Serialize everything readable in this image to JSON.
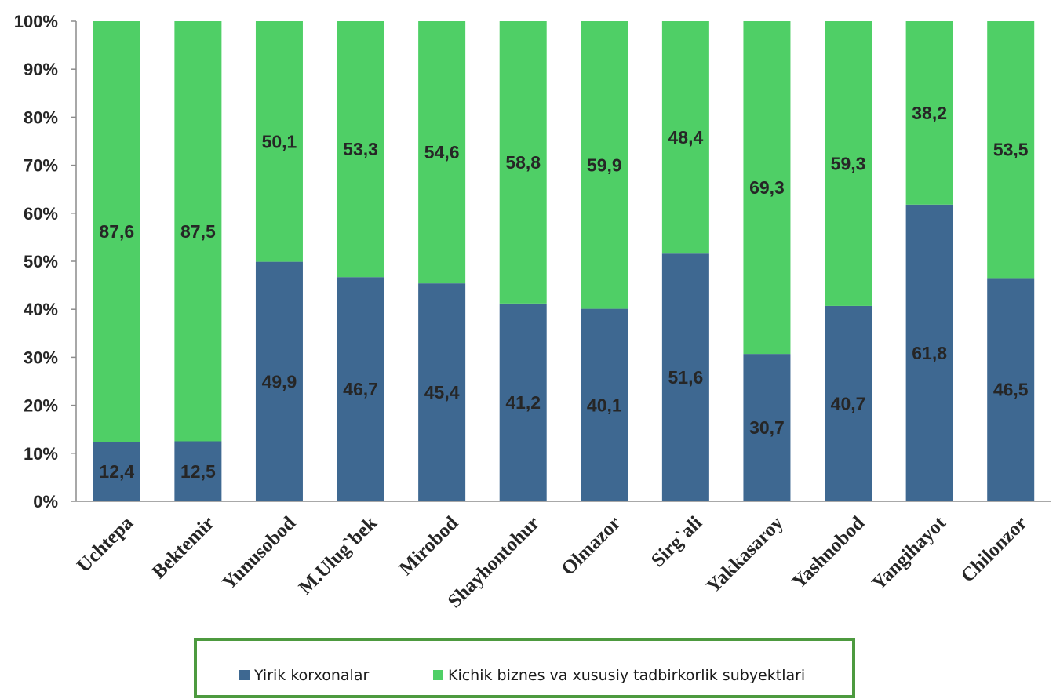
{
  "chart_data": {
    "type": "bar",
    "stacked": "percent",
    "categories": [
      "Uchtepa",
      "Bektemir",
      "Yunusobod",
      "M.Ulug`bek",
      "Mirobod",
      "Shayhontohur",
      "Olmazor",
      "Sirg`ali",
      "Yakkasaroy",
      "Yashnobod",
      "Yangihayot",
      "Chilonzor"
    ],
    "series": [
      {
        "name": "Yirik korxonalar",
        "color": "#3e6891",
        "values": [
          12.4,
          12.5,
          49.9,
          46.7,
          45.4,
          41.2,
          40.1,
          51.6,
          30.7,
          40.7,
          61.8,
          46.5
        ],
        "labels": [
          "12,4",
          "12,5",
          "49,9",
          "46,7",
          "45,4",
          "41,2",
          "40,1",
          "51,6",
          "30,7",
          "40,7",
          "61,8",
          "46,5"
        ]
      },
      {
        "name": "Kichik biznes va xususiy tadbirkorlik subyektlari",
        "color": "#4fcf66",
        "values": [
          87.6,
          87.5,
          50.1,
          53.3,
          54.6,
          58.8,
          59.9,
          48.4,
          69.3,
          59.3,
          38.2,
          53.5
        ],
        "labels": [
          "87,6",
          "87,5",
          "50,1",
          "53,3",
          "54,6",
          "58,8",
          "59,9",
          "48,4",
          "69,3",
          "59,3",
          "38,2",
          "53,5"
        ]
      }
    ],
    "ylim": [
      0,
      100
    ],
    "yticks": [
      "0%",
      "10%",
      "20%",
      "30%",
      "40%",
      "50%",
      "60%",
      "70%",
      "80%",
      "90%",
      "100%"
    ],
    "grid": false,
    "legend": "bottom",
    "legend_border_color": "#4d9a3f"
  }
}
